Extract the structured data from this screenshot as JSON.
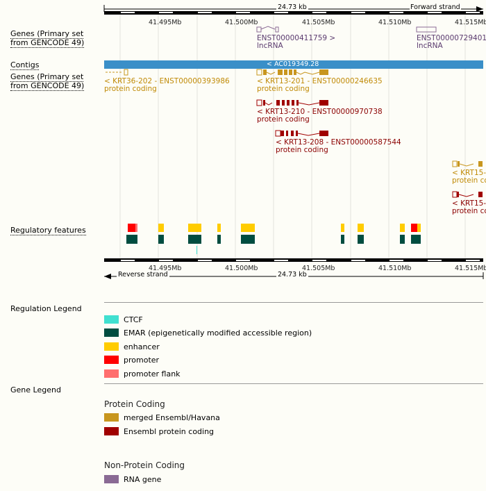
{
  "header": {
    "length": "24.73 kb",
    "forward_strand": "Forward strand",
    "reverse_strand": "Reverse strand",
    "ticks": [
      "41.495Mb",
      "41.500Mb",
      "41.505Mb",
      "41.510Mb",
      "41.515Mb"
    ]
  },
  "tracks": {
    "genes_top": [
      "Genes (Primary set",
      "from GENCODE 49)"
    ],
    "contigs": "Contigs",
    "genes_bottom": [
      "Genes (Primary set",
      "from GENCODE 49)"
    ],
    "regulatory": "Regulatory features"
  },
  "genes": {
    "lnc1_name": "ENST00000411759 >",
    "lnc1_type": "lncRNA",
    "lnc2_name": "ENST00000729401",
    "lnc2_type": "lncRNA",
    "contig_name": "< AC019349.28",
    "krt36_name": "< KRT36-202 - ENST00000393986",
    "krt36_type": "protein coding",
    "krt13_201_name": "< KRT13-201 - ENST00000246635",
    "krt13_201_type": "protein coding",
    "krt13_210_name": "< KRT13-210 - ENST00000970738",
    "krt13_210_type": "protein coding",
    "krt13_208_name": "< KRT13-208 - ENST00000587544",
    "krt13_208_type": "protein coding",
    "krt15a_name": "< KRT15-",
    "krt15a_type": "protein co",
    "krt15b_name": "< KRT15-",
    "krt15b_type": "protein co"
  },
  "legend": {
    "regulation_title": "Regulation Legend",
    "regulation_items": [
      {
        "label": "CTCF",
        "color": "#40e0d0"
      },
      {
        "label": "EMAR (epigenetically modified accessible region)",
        "color": "#004d40"
      },
      {
        "label": "enhancer",
        "color": "#ffcc00"
      },
      {
        "label": "promoter",
        "color": "#ff0000"
      },
      {
        "label": "promoter flank",
        "color": "#ff6e6e"
      }
    ],
    "gene_title": "Gene Legend",
    "protein_coding_title": "Protein Coding",
    "protein_coding_items": [
      {
        "label": "merged Ensembl/Havana",
        "color": "#c8961e"
      },
      {
        "label": "Ensembl protein coding",
        "color": "#a00000"
      }
    ],
    "non_protein_title": "Non-Protein Coding",
    "non_protein_items": [
      {
        "label": "RNA gene",
        "color": "#8a6a94"
      }
    ]
  }
}
